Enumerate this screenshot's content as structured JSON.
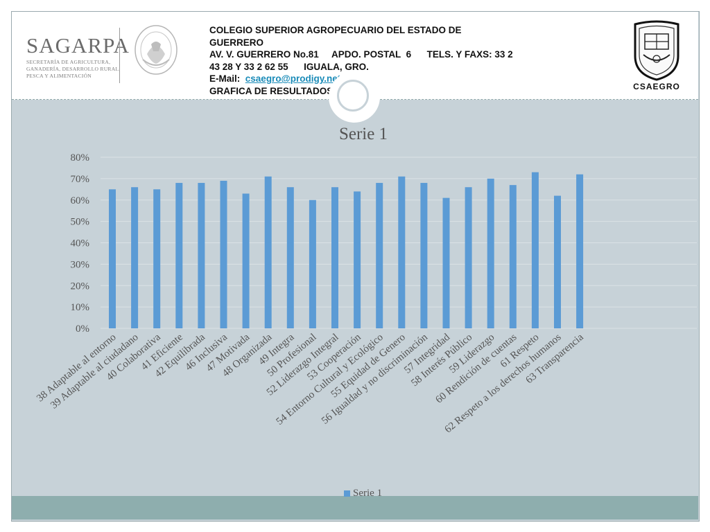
{
  "header": {
    "line1": "COLEGIO SUPERIOR AGROPECUARIO DEL ESTADO DE",
    "line2": "GUERRERO",
    "line3": "AV. V. GUERRERO No.81     APDO. POSTAL  6      TELS. Y FAXS: 33 2",
    "line4": "43 28 Y 33 2 62 55      IGUALA, GRO.",
    "email_label": "E-Mail:",
    "email": "csaegro@prodigy.net.mx",
    "line6": "GRAFICA DE RESULTADOS"
  },
  "logos": {
    "sagarpa_name": "SAGARPA",
    "sagarpa_sub1": "SECRETARÍA DE AGRICULTURA,",
    "sagarpa_sub2": "GANADERÍA, DESARROLLO RURAL,",
    "sagarpa_sub3": "PESCA Y ALIMENTACIÓN",
    "csaegro_label": "CSAEGRO"
  },
  "colors": {
    "bar": "#5b9bd5",
    "background": "#c7d2d8",
    "band": "#8eaeae"
  },
  "chart_data": {
    "type": "bar",
    "title": "Serie 1",
    "xlabel": "",
    "ylabel": "",
    "ylim": [
      0,
      0.8
    ],
    "yticks": [
      "0%",
      "10%",
      "20%",
      "30%",
      "40%",
      "50%",
      "60%",
      "70%",
      "80%"
    ],
    "grid": true,
    "legend_position": "bottom",
    "categories": [
      "38 Adaptable al entorno",
      "39 Adaptable al ciudadano",
      "40 Colaborativa",
      "41 Eficiente",
      "42 Equilibrada",
      "46 Inclusiva",
      "47 Motivada",
      "48 Organizada",
      "49 Integra",
      "50 Profesional",
      "52 Liderazgo Integral",
      "53 Cooperación",
      "54 Entorno Cultural y Ecológico",
      "55 Equidad de Genero",
      "56 Igualdad y no discriminación",
      "57 Integridad",
      "58 Interés Público",
      "59 Liderazgo",
      "60 Rendición de cuentas",
      "61 Respeto",
      "62 Respeto a los derechos humanos",
      "63 Transparencia"
    ],
    "series": [
      {
        "name": "Serie 1",
        "values": [
          0.65,
          0.66,
          0.65,
          0.68,
          0.68,
          0.69,
          0.63,
          0.71,
          0.66,
          0.6,
          0.66,
          0.64,
          0.68,
          0.71,
          0.68,
          0.61,
          0.66,
          0.7,
          0.67,
          0.73,
          0.62,
          0.72
        ]
      }
    ]
  }
}
